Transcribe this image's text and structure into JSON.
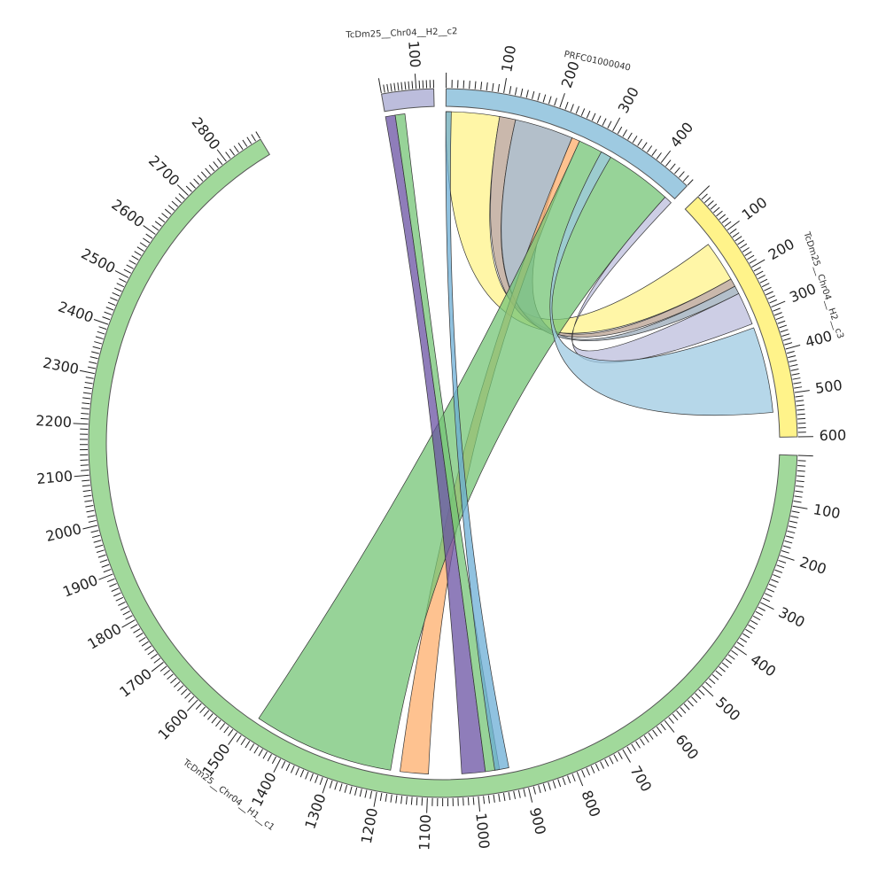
{
  "chart_data": {
    "type": "chord",
    "unit_per_tick_label": 100,
    "sequences": [
      {
        "id": "s1",
        "name": "TcDm25__Chr04__H1__c1",
        "length": 2880,
        "color": "#a1d99b",
        "labels": [
          100,
          200,
          300,
          400,
          500,
          600,
          700,
          800,
          900,
          1000,
          1100,
          1200,
          1300,
          1400,
          1500,
          1600,
          1700,
          1800,
          1900,
          2000,
          2100,
          2200,
          2300,
          2400,
          2500,
          2600,
          2700,
          2800
        ]
      },
      {
        "id": "s2",
        "name": "TcDm25__Chr04__H2__c2",
        "length": 150,
        "color": "#bcbddc",
        "labels": [
          100
        ]
      },
      {
        "id": "s3",
        "name": "PRFC01000040",
        "length": 460,
        "color": "#9ecae1",
        "labels": [
          100,
          200,
          300,
          400
        ]
      },
      {
        "id": "s4",
        "name": "TcDm25__Chr04__H2__c3",
        "length": 600,
        "color": "#fff38a",
        "labels": [
          100,
          200,
          300,
          400,
          500,
          600
        ]
      }
    ],
    "links": [
      {
        "a": "s3",
        "a_start": 0,
        "a_end": 100,
        "b": "s4",
        "b_start": 100,
        "b_end": 200,
        "color": "#fff38a"
      },
      {
        "a": "s3",
        "a_start": 100,
        "a_end": 130,
        "b": "s4",
        "b_start": 200,
        "b_end": 220,
        "color": "#b8a090"
      },
      {
        "a": "s3",
        "a_start": 130,
        "a_end": 240,
        "b": "s4",
        "b_start": 220,
        "b_end": 240,
        "color": "#9aaab8"
      },
      {
        "a": "s3",
        "a_start": 240,
        "a_end": 255,
        "b": "s1",
        "b_start": 1100,
        "b_end": 1160,
        "color": "#fdae6b"
      },
      {
        "a": "s3",
        "a_start": 255,
        "a_end": 445,
        "b": "s1",
        "b_start": 1180,
        "b_end": 1480,
        "color": "#74c476"
      },
      {
        "a": "s3",
        "a_start": 445,
        "a_end": 460,
        "b": "s4",
        "b_start": 240,
        "b_end": 320,
        "color": "#bcbddc"
      },
      {
        "a": "s4",
        "a_start": 330,
        "a_end": 540,
        "b": "s3",
        "b_start": 300,
        "b_end": 320,
        "color": "#9ecae1"
      },
      {
        "a": "s2",
        "a_start": 0,
        "a_end": 30,
        "b": "s1",
        "b_start": 980,
        "b_end": 1030,
        "color": "#6a51a3"
      },
      {
        "a": "s2",
        "a_start": 30,
        "a_end": 60,
        "b": "s1",
        "b_start": 950,
        "b_end": 980,
        "color": "#74c476"
      },
      {
        "a": "s3",
        "a_start": 0,
        "a_end": 10,
        "b": "s1",
        "b_start": 930,
        "b_end": 960,
        "color": "#6baed6"
      }
    ]
  }
}
